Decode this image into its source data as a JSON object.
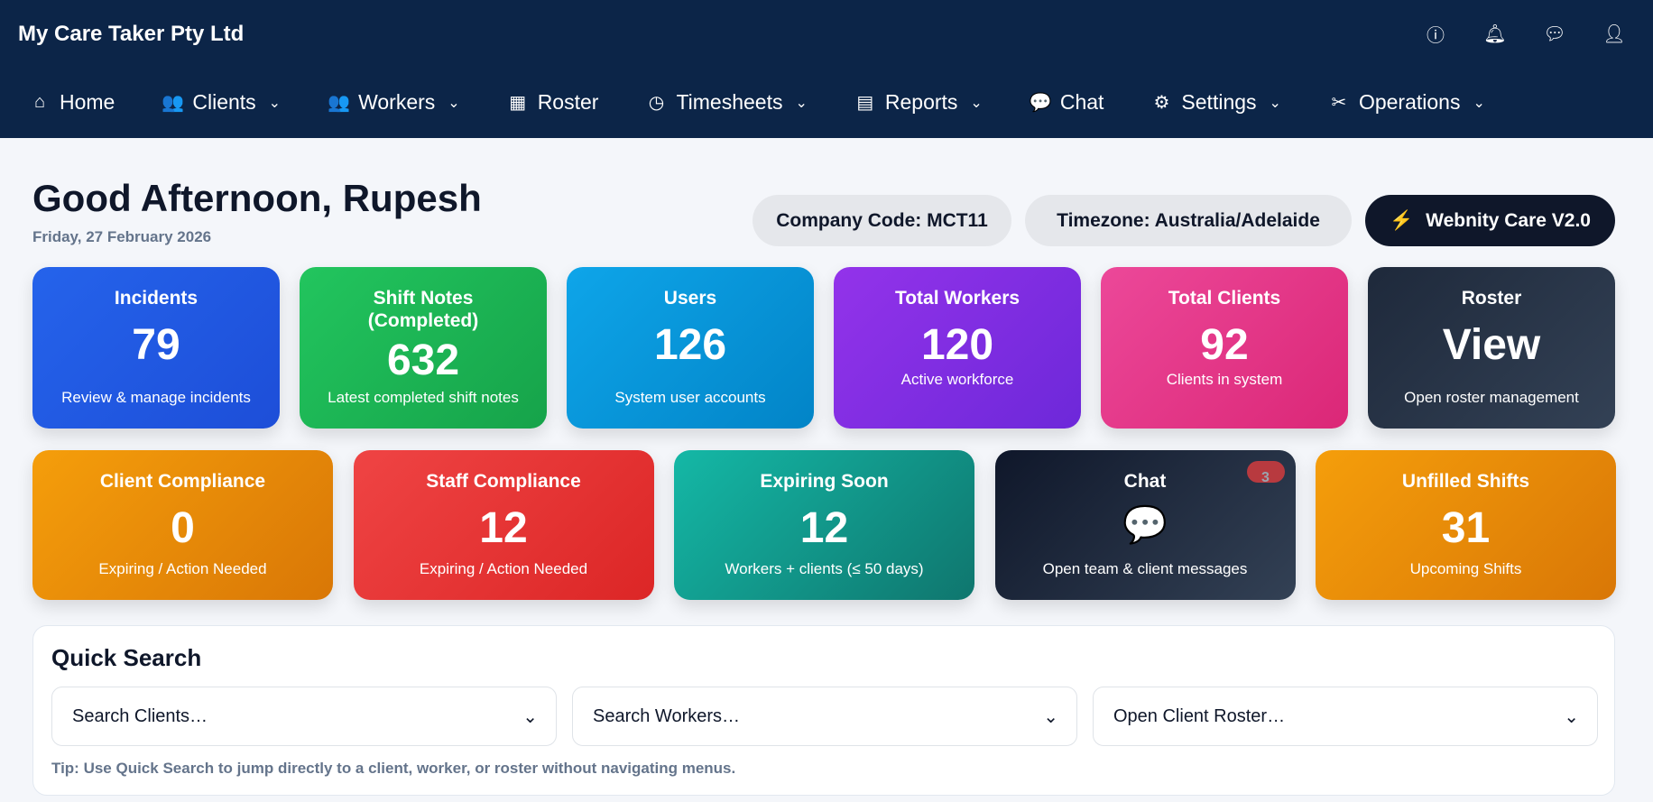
{
  "header": {
    "brand": "My Care Taker Pty Ltd",
    "icons": [
      "info-icon",
      "bell-icon",
      "chat-icon",
      "user-icon"
    ]
  },
  "nav": [
    {
      "label": "Home",
      "icon": "⌂",
      "dd": false
    },
    {
      "label": "Clients",
      "icon": "👥",
      "dd": true
    },
    {
      "label": "Workers",
      "icon": "👥",
      "dd": true
    },
    {
      "label": "Roster",
      "icon": "▦",
      "dd": false
    },
    {
      "label": "Timesheets",
      "icon": "◷",
      "dd": true
    },
    {
      "label": "Reports",
      "icon": "▤",
      "dd": true
    },
    {
      "label": "Chat",
      "icon": "💬",
      "dd": false
    },
    {
      "label": "Settings",
      "icon": "⚙",
      "dd": true
    },
    {
      "label": "Operations",
      "icon": "✂",
      "dd": true
    }
  ],
  "greeting": "Good Afternoon, Rupesh",
  "date": "Friday, 27 February 2026",
  "pills": {
    "company": "Company Code: MCT11",
    "timezone": "Timezone: Australia/Adelaide",
    "version": "Webnity Care V2.0"
  },
  "row1": [
    {
      "title": "Incidents",
      "value": "79",
      "sub": "Review & manage incidents"
    },
    {
      "title": "Shift Notes (Completed)",
      "value": "632",
      "sub": "Latest completed shift notes"
    },
    {
      "title": "Users",
      "value": "126",
      "sub": "System user accounts"
    },
    {
      "title": "Total Workers",
      "value": "120",
      "sub": "Active workforce"
    },
    {
      "title": "Total Clients",
      "value": "92",
      "sub": "Clients in system"
    },
    {
      "title": "Roster",
      "value": "View",
      "sub": "Open roster management"
    }
  ],
  "row2": [
    {
      "title": "Client Compliance",
      "value": "0",
      "sub": "Expiring / Action Needed"
    },
    {
      "title": "Staff Compliance",
      "value": "12",
      "sub": "Expiring / Action Needed"
    },
    {
      "title": "Expiring Soon",
      "value": "12",
      "sub": "Workers + clients (≤ 50 days)"
    },
    {
      "title": "Chat",
      "value": "💬",
      "sub": "Open team & client messages",
      "badge": "3"
    },
    {
      "title": "Unfilled Shifts",
      "value": "31",
      "sub": "Upcoming Shifts"
    }
  ],
  "quick": {
    "title": "Quick Search",
    "selects": [
      "Search Clients…",
      "Search Workers…",
      "Open Client Roster…"
    ],
    "tip": "Tip: Use Quick Search to jump directly to a client, worker, or roster without navigating menus."
  }
}
